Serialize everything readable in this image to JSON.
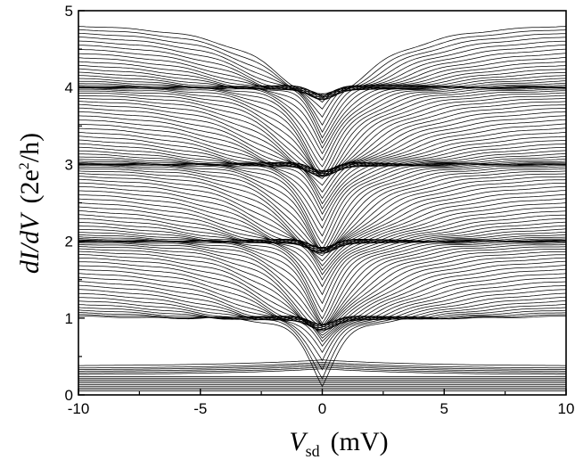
{
  "chart_data": {
    "type": "line",
    "title": "",
    "xlabel": {
      "symbol": "V",
      "subscript": "sd",
      "unit": "(mV)"
    },
    "ylabel": {
      "symbol": "dI/dV",
      "unit_prefix": "(2e",
      "unit_sup": "2",
      "unit_suffix": "/h)"
    },
    "xlim": [
      -10,
      10
    ],
    "ylim": [
      0,
      5
    ],
    "x_ticks": [
      "-10",
      "-5",
      "0",
      "5",
      "10"
    ],
    "y_ticks": [
      "0",
      "1",
      "2",
      "3",
      "4",
      "5"
    ],
    "grid": false,
    "legend": "none",
    "line_color": "#000000",
    "series_description": {
      "trace_count": 120,
      "x_range": [
        -10,
        10
      ],
      "zero_bias_conductance_range": [
        0.05,
        4.02
      ],
      "plateau_conductances": [
        1,
        2,
        3,
        4
      ],
      "sample_traces": [
        {
          "x": [
            -10,
            -5,
            -2,
            0,
            2,
            5,
            10
          ],
          "y": [
            0.05,
            0.05,
            0.05,
            0.05,
            0.05,
            0.05,
            0.05
          ]
        },
        {
          "x": [
            -10,
            -5,
            -2,
            0,
            2,
            5,
            10
          ],
          "y": [
            0.36,
            0.39,
            0.42,
            0.3,
            0.25,
            0.2,
            0.18
          ]
        },
        {
          "x": [
            -10,
            -5,
            -2,
            0,
            2,
            5,
            10
          ],
          "y": [
            1.95,
            1.35,
            1.05,
            0.99,
            1.05,
            1.35,
            1.95
          ]
        },
        {
          "x": [
            -10,
            -5,
            -2,
            0,
            2,
            5,
            10
          ],
          "y": [
            2.85,
            2.3,
            2.05,
            2.0,
            2.05,
            2.3,
            2.85
          ]
        },
        {
          "x": [
            -10,
            -5,
            -2,
            0,
            2,
            5,
            10
          ],
          "y": [
            3.7,
            3.25,
            3.05,
            3.0,
            3.05,
            3.25,
            3.7
          ]
        },
        {
          "x": [
            -10,
            -5,
            -2,
            0,
            2,
            5,
            10
          ],
          "y": [
            4.98,
            4.5,
            4.15,
            4.02,
            4.15,
            4.5,
            4.98
          ]
        }
      ]
    }
  }
}
